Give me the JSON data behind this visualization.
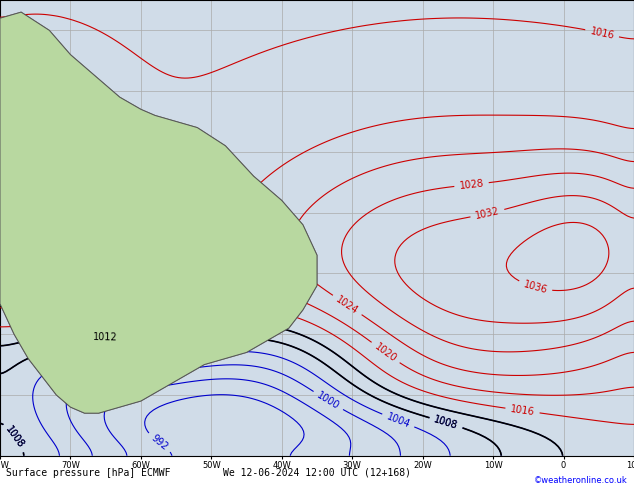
{
  "title": "Surface pressure [hPa] ECMWF",
  "date_label": "We 12-06-2024 12:00 UTC (12+168)",
  "copyright": "©weatheronline.co.uk",
  "lon_min": -80,
  "lon_max": 10,
  "lat_min": -60,
  "lat_max": 15,
  "background_ocean": "#d0dce8",
  "background_land": "#b8d8a0",
  "grid_color": "#aaaaaa",
  "contour_blue": "#0000cc",
  "contour_red": "#cc0000",
  "contour_black": "#000000",
  "label_fontsize": 7,
  "bottom_bar_color": "#c8c8c8",
  "figsize": [
    6.34,
    4.9
  ],
  "dpi": 100
}
